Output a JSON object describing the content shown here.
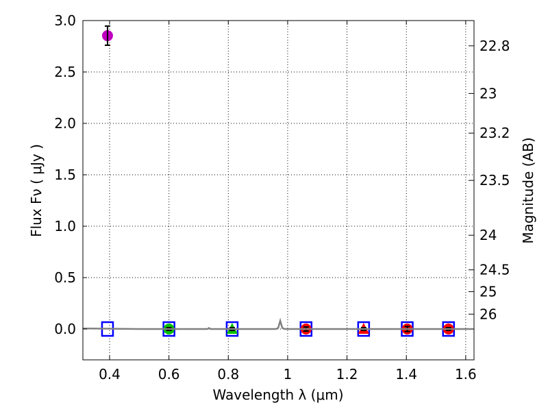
{
  "chart_data": {
    "type": "scatter",
    "title": "",
    "xlabel": "Wavelength  λ (μm)",
    "ylabel": "Flux  Fν  ( μJy )",
    "ylabel_right": "Magnitude (AB)",
    "xlim": [
      0.31,
      1.628
    ],
    "ylim": [
      -0.3,
      3.0
    ],
    "grid": true,
    "xticks": [
      0.4,
      0.6,
      0.8,
      1.0,
      1.2,
      1.4,
      1.6
    ],
    "xtick_labels": [
      "0.4",
      "0.6",
      "0.8",
      "1",
      "1.2",
      "1.4",
      "1.6"
    ],
    "yticks": [
      0.0,
      0.5,
      1.0,
      1.5,
      2.0,
      2.5,
      3.0
    ],
    "ytick_labels": [
      "0.0",
      "0.5",
      "1.0",
      "1.5",
      "2.0",
      "2.5",
      "3.0"
    ],
    "right_ticks": [
      22.8,
      23,
      23.2,
      23.5,
      24,
      24.5,
      25,
      26
    ],
    "right_tick_labels": [
      "22.8",
      "23",
      "23.2",
      "23.5",
      "24",
      "24.5",
      "25",
      "26"
    ],
    "series": [
      {
        "name": "model-boxes",
        "marker": "square-open",
        "color": "#0000ff",
        "x": [
          0.393,
          0.6,
          0.813,
          1.062,
          1.256,
          1.403,
          1.542
        ],
        "y": [
          0,
          0,
          0,
          0,
          0,
          0,
          0
        ]
      },
      {
        "name": "purple-detection",
        "marker": "circle",
        "color": "#bf00bf",
        "x": [
          0.393
        ],
        "y": [
          2.853
        ],
        "yerr": [
          0.093
        ]
      },
      {
        "name": "green-circle",
        "marker": "circle",
        "color": "#00bf00",
        "x": [
          0.6
        ],
        "y": [
          0.0
        ],
        "yerr": [
          0.01
        ]
      },
      {
        "name": "green-triangle",
        "marker": "triangle",
        "color": "#00bf00",
        "x": [
          0.813
        ],
        "y": [
          0.0
        ],
        "yerr": [
          0.005
        ]
      },
      {
        "name": "red-circles",
        "marker": "circle",
        "color": "#ff0000",
        "x": [
          1.062,
          1.403,
          1.542
        ],
        "y": [
          0.0,
          0.0,
          0.0
        ],
        "yerr": [
          0.02,
          0.025,
          0.01
        ]
      },
      {
        "name": "red-triangle",
        "marker": "triangle",
        "color": "#ff0000",
        "x": [
          1.256
        ],
        "y": [
          0.0
        ],
        "yerr": [
          0.01
        ]
      },
      {
        "name": "spectrum",
        "marker": "line",
        "color": "#808080",
        "x": [
          0.31,
          0.5,
          0.73,
          0.735,
          0.74,
          0.96,
          0.968,
          0.975,
          0.982,
          0.99,
          1.2,
          1.628
        ],
        "y": [
          0.005,
          0.0,
          0.0,
          0.01,
          0.0,
          0.0,
          0.01,
          0.08,
          0.01,
          0.0,
          0.0,
          0.0
        ]
      }
    ]
  }
}
